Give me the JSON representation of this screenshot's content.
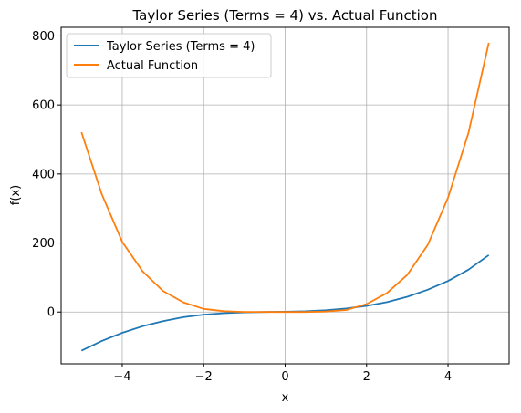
{
  "chart_data": {
    "type": "line",
    "title": "Taylor Series (Terms = 4) vs. Actual Function",
    "xlabel": "x",
    "ylabel": "f(x)",
    "xlim": [
      -5.5,
      5.5
    ],
    "ylim": [
      -150,
      825
    ],
    "x_ticks": [
      -4,
      -2,
      0,
      2,
      4
    ],
    "y_ticks": [
      0,
      200,
      400,
      600,
      800
    ],
    "grid": true,
    "legend_position": "top-left",
    "series": [
      {
        "name": "Taylor Series (Terms = 4)",
        "color": "#1f77b4",
        "x": [
          -5,
          -4.5,
          -4,
          -3.5,
          -3,
          -2.5,
          -2,
          -1.5,
          -1,
          -0.5,
          0,
          0.5,
          1,
          1.5,
          2,
          2.5,
          3,
          3.5,
          4,
          4.5,
          5
        ],
        "y": [
          -112,
          -83.6,
          -60.2,
          -41.2,
          -26.3,
          -15.1,
          -7.7,
          -3.4,
          -0.9,
          0.1,
          1,
          2.3,
          5.2,
          10.1,
          17.8,
          28.6,
          44.2,
          64.5,
          89.9,
          122.6,
          165
        ]
      },
      {
        "name": "Actual Function",
        "color": "#ff7f0e",
        "x": [
          -5,
          -4.5,
          -4,
          -3.5,
          -3,
          -2.5,
          -2,
          -1.5,
          -1,
          -0.5,
          0,
          0.5,
          1,
          1.5,
          2,
          2.5,
          3,
          3.5,
          4,
          4.5,
          5
        ],
        "y": [
          521,
          341,
          203,
          118,
          61,
          28,
          9,
          2.5,
          0.4,
          0.1,
          0,
          0.1,
          1.3,
          6,
          23,
          55,
          108,
          194,
          331,
          519,
          780
        ]
      }
    ]
  }
}
